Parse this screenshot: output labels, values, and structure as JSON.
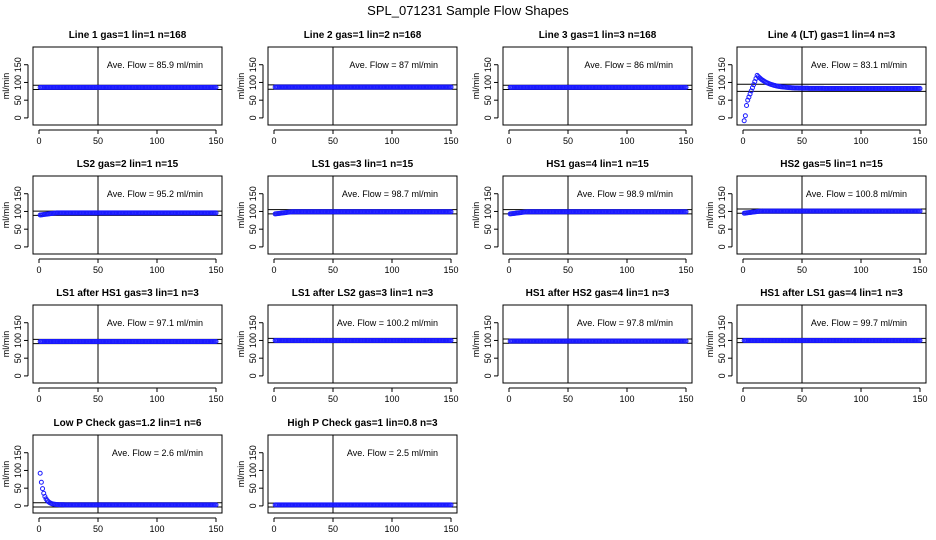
{
  "page_title": "SPL_071231  Sample Flow Shapes",
  "colors": {
    "points": "#1a1aff",
    "axes": "#000000",
    "background": "#ffffff"
  },
  "chart_data": [
    {
      "type": "scatter",
      "title": "Line 1 gas=1 lin=1 n=168",
      "annotation": "Ave. Flow = 85.9  ml/min",
      "ylabel": "ml/min",
      "xlim": [
        0,
        150
      ],
      "ylim": [
        -20,
        200
      ],
      "x_ticks": [
        0,
        50,
        100,
        150
      ],
      "y_ticks": [
        0,
        50,
        100,
        150
      ],
      "vline": 50,
      "hlines": [
        92,
        80
      ],
      "shape": "flat",
      "level": 86,
      "x_start": 1
    },
    {
      "type": "scatter",
      "title": "Line 2 gas=1 lin=2 n=168",
      "annotation": "Ave. Flow = 87  ml/min",
      "ylabel": "ml/min",
      "xlim": [
        0,
        150
      ],
      "ylim": [
        -20,
        200
      ],
      "x_ticks": [
        0,
        50,
        100,
        150
      ],
      "y_ticks": [
        0,
        50,
        100,
        150
      ],
      "vline": 50,
      "hlines": [
        93,
        81
      ],
      "shape": "flat",
      "level": 87,
      "x_start": 1
    },
    {
      "type": "scatter",
      "title": "Line 3 gas=1 lin=3 n=168",
      "annotation": "Ave. Flow = 86  ml/min",
      "ylabel": "ml/min",
      "xlim": [
        0,
        150
      ],
      "ylim": [
        -20,
        200
      ],
      "x_ticks": [
        0,
        50,
        100,
        150
      ],
      "y_ticks": [
        0,
        50,
        100,
        150
      ],
      "vline": 50,
      "hlines": [
        92,
        80
      ],
      "shape": "flat",
      "level": 86,
      "x_start": 1
    },
    {
      "type": "scatter",
      "title": "Line 4 (LT) gas=1 lin=4 n=3",
      "annotation": "Ave. Flow = 83.1  ml/min",
      "ylabel": "ml/min",
      "xlim": [
        0,
        150
      ],
      "ylim": [
        -20,
        200
      ],
      "x_ticks": [
        0,
        50,
        100,
        150
      ],
      "y_ticks": [
        0,
        50,
        100,
        150
      ],
      "vline": 50,
      "hlines": [
        95,
        75
      ],
      "shape": "overshoot",
      "level": 83,
      "x_start": 1
    },
    {
      "type": "scatter",
      "title": "LS2 gas=2 lin=1 n=15",
      "annotation": "Ave. Flow = 95.2  ml/min",
      "ylabel": "ml/min",
      "xlim": [
        0,
        150
      ],
      "ylim": [
        -20,
        200
      ],
      "x_ticks": [
        0,
        50,
        100,
        150
      ],
      "y_ticks": [
        0,
        50,
        100,
        150
      ],
      "vline": 50,
      "hlines": [
        101,
        89
      ],
      "shape": "ramp",
      "level": 96,
      "x_start": 1
    },
    {
      "type": "scatter",
      "title": "LS1 gas=3 lin=1 n=15",
      "annotation": "Ave. Flow = 98.7  ml/min",
      "ylabel": "ml/min",
      "xlim": [
        0,
        150
      ],
      "ylim": [
        -20,
        200
      ],
      "x_ticks": [
        0,
        50,
        100,
        150
      ],
      "y_ticks": [
        0,
        50,
        100,
        150
      ],
      "vline": 50,
      "hlines": [
        105,
        93
      ],
      "shape": "ramp",
      "level": 99,
      "x_start": 1
    },
    {
      "type": "scatter",
      "title": "HS1 gas=4 lin=1 n=15",
      "annotation": "Ave. Flow = 98.9  ml/min",
      "ylabel": "ml/min",
      "xlim": [
        0,
        150
      ],
      "ylim": [
        -20,
        200
      ],
      "x_ticks": [
        0,
        50,
        100,
        150
      ],
      "y_ticks": [
        0,
        50,
        100,
        150
      ],
      "vline": 50,
      "hlines": [
        105,
        93
      ],
      "shape": "ramp",
      "level": 99,
      "x_start": 1
    },
    {
      "type": "scatter",
      "title": "HS2 gas=5 lin=1 n=15",
      "annotation": "Ave. Flow = 100.8  ml/min",
      "ylabel": "ml/min",
      "xlim": [
        0,
        150
      ],
      "ylim": [
        -20,
        200
      ],
      "x_ticks": [
        0,
        50,
        100,
        150
      ],
      "y_ticks": [
        0,
        50,
        100,
        150
      ],
      "vline": 50,
      "hlines": [
        107,
        95
      ],
      "shape": "ramp",
      "level": 101,
      "x_start": 1
    },
    {
      "type": "scatter",
      "title": "LS1 after HS1 gas=3 lin=1 n=3",
      "annotation": "Ave. Flow = 97.1  ml/min",
      "ylabel": "ml/min",
      "xlim": [
        0,
        150
      ],
      "ylim": [
        -20,
        200
      ],
      "x_ticks": [
        0,
        50,
        100,
        150
      ],
      "y_ticks": [
        0,
        50,
        100,
        150
      ],
      "vline": 50,
      "hlines": [
        103,
        91
      ],
      "shape": "flat",
      "level": 97,
      "x_start": 1
    },
    {
      "type": "scatter",
      "title": "LS1 after LS2 gas=3 lin=1 n=3",
      "annotation": "Ave. Flow = 100.2  ml/min",
      "ylabel": "ml/min",
      "xlim": [
        0,
        150
      ],
      "ylim": [
        -20,
        200
      ],
      "x_ticks": [
        0,
        50,
        100,
        150
      ],
      "y_ticks": [
        0,
        50,
        100,
        150
      ],
      "vline": 50,
      "hlines": [
        106,
        94
      ],
      "shape": "flat",
      "level": 100,
      "x_start": 1
    },
    {
      "type": "scatter",
      "title": "HS1 after HS2 gas=4 lin=1 n=3",
      "annotation": "Ave. Flow = 97.8  ml/min",
      "ylabel": "ml/min",
      "xlim": [
        0,
        150
      ],
      "ylim": [
        -20,
        200
      ],
      "x_ticks": [
        0,
        50,
        100,
        150
      ],
      "y_ticks": [
        0,
        50,
        100,
        150
      ],
      "vline": 50,
      "hlines": [
        104,
        92
      ],
      "shape": "flat",
      "level": 98,
      "x_start": 1
    },
    {
      "type": "scatter",
      "title": "HS1 after LS1 gas=4 lin=1 n=3",
      "annotation": "Ave. Flow = 99.7  ml/min",
      "ylabel": "ml/min",
      "xlim": [
        0,
        150
      ],
      "ylim": [
        -20,
        200
      ],
      "x_ticks": [
        0,
        50,
        100,
        150
      ],
      "y_ticks": [
        0,
        50,
        100,
        150
      ],
      "vline": 50,
      "hlines": [
        106,
        94
      ],
      "shape": "flat",
      "level": 100,
      "x_start": 1
    },
    {
      "type": "scatter",
      "title": "Low P Check gas=1.2 lin=1 n=6",
      "annotation": "Ave. Flow = 2.6  ml/min",
      "ylabel": "ml/min",
      "xlim": [
        0,
        150
      ],
      "ylim": [
        -20,
        200
      ],
      "x_ticks": [
        0,
        50,
        100,
        150
      ],
      "y_ticks": [
        0,
        50,
        100,
        150
      ],
      "vline": 50,
      "hlines": [
        9,
        -3
      ],
      "shape": "decay",
      "level": 3,
      "start_value": 92,
      "x_start": 1
    },
    {
      "type": "scatter",
      "title": "High P Check gas=1 lin=0.8 n=3",
      "annotation": "Ave. Flow = 2.5  ml/min",
      "ylabel": "ml/min",
      "xlim": [
        0,
        150
      ],
      "ylim": [
        -20,
        200
      ],
      "x_ticks": [
        0,
        50,
        100,
        150
      ],
      "y_ticks": [
        0,
        50,
        100,
        150
      ],
      "vline": 50,
      "hlines": [
        8,
        -3
      ],
      "shape": "flat",
      "level": 3,
      "x_start": 1
    }
  ]
}
